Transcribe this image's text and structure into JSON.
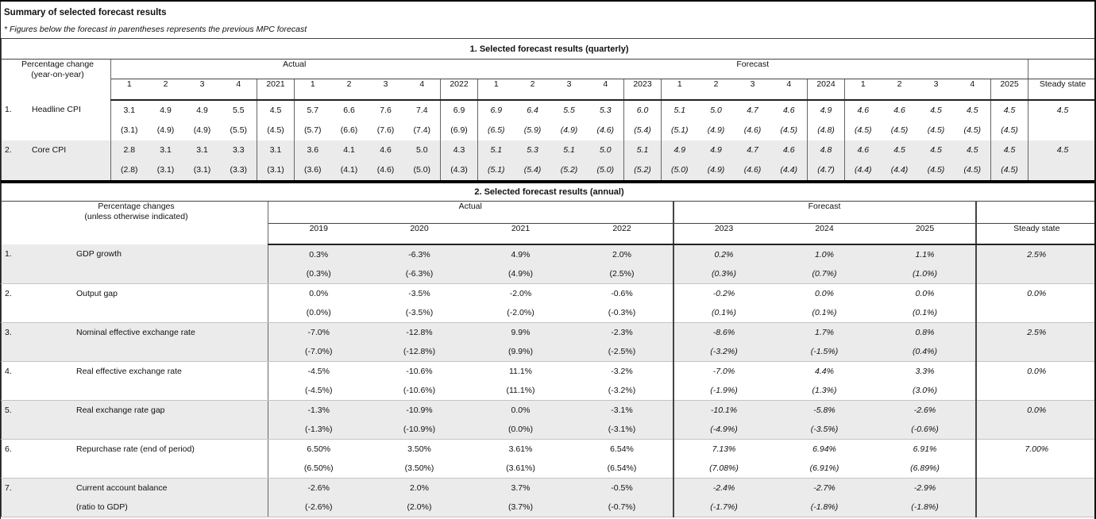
{
  "page": {
    "title": "Summary of selected forecast results",
    "footnote": "* Figures below the forecast in parentheses represents the previous MPC forecast"
  },
  "colors": {
    "row_shade": "#ebebeb",
    "grid_dark": "#000000",
    "grid_mid": "#666666",
    "text": "#111111"
  },
  "quarterly_table": {
    "title": "1. Selected forecast results (quarterly)",
    "row_header_line1": "Percentage change",
    "row_header_line2": "(year-on-year)",
    "group_actual": "Actual",
    "group_forecast": "Forecast",
    "group_steady": "Steady state",
    "columns": [
      "1",
      "2",
      "3",
      "4",
      "2021",
      "1",
      "2",
      "3",
      "4",
      "2022",
      "1",
      "2",
      "3",
      "4",
      "2023",
      "1",
      "2",
      "3",
      "4",
      "2024",
      "1",
      "2",
      "3",
      "4",
      "2025"
    ],
    "forecast_start_index": 10,
    "rows": [
      {
        "num": "1.",
        "label": "Headline CPI",
        "values": [
          "3.1",
          "4.9",
          "4.9",
          "5.5",
          "4.5",
          "5.7",
          "6.6",
          "7.6",
          "7.4",
          "6.9",
          "6.9",
          "6.4",
          "5.5",
          "5.3",
          "6.0",
          "5.1",
          "5.0",
          "4.7",
          "4.6",
          "4.9",
          "4.6",
          "4.6",
          "4.5",
          "4.5",
          "4.5"
        ],
        "previous": [
          "(3.1)",
          "(4.9)",
          "(4.9)",
          "(5.5)",
          "(4.5)",
          "(5.7)",
          "(6.6)",
          "(7.6)",
          "(7.4)",
          "(6.9)",
          "(6.5)",
          "(5.9)",
          "(4.9)",
          "(4.6)",
          "(5.4)",
          "(5.1)",
          "(4.9)",
          "(4.6)",
          "(4.5)",
          "(4.8)",
          "(4.5)",
          "(4.5)",
          "(4.5)",
          "(4.5)",
          "(4.5)"
        ],
        "steady": "4.5"
      },
      {
        "num": "2.",
        "label": "Core CPI",
        "values": [
          "2.8",
          "3.1",
          "3.1",
          "3.3",
          "3.1",
          "3.6",
          "4.1",
          "4.6",
          "5.0",
          "4.3",
          "5.1",
          "5.3",
          "5.1",
          "5.0",
          "5.1",
          "4.9",
          "4.9",
          "4.7",
          "4.6",
          "4.8",
          "4.6",
          "4.5",
          "4.5",
          "4.5",
          "4.5"
        ],
        "previous": [
          "(2.8)",
          "(3.1)",
          "(3.1)",
          "(3.3)",
          "(3.1)",
          "(3.6)",
          "(4.1)",
          "(4.6)",
          "(5.0)",
          "(4.3)",
          "(5.1)",
          "(5.4)",
          "(5.2)",
          "(5.0)",
          "(5.2)",
          "(5.0)",
          "(4.9)",
          "(4.6)",
          "(4.4)",
          "(4.7)",
          "(4.4)",
          "(4.4)",
          "(4.5)",
          "(4.5)",
          "(4.5)"
        ],
        "steady": "4.5"
      }
    ]
  },
  "annual_table": {
    "title": "2. Selected forecast results (annual)",
    "row_header_line1": "Percentage changes",
    "row_header_line2": "(unless otherwise indicated)",
    "group_actual": "Actual",
    "group_forecast": "Forecast",
    "group_steady": "Steady state",
    "columns": [
      "2019",
      "2020",
      "2021",
      "2022",
      "2023",
      "2024",
      "2025"
    ],
    "forecast_start_index": 4,
    "rows": [
      {
        "num": "1.",
        "label": "GDP growth",
        "label2": "",
        "values": [
          "0.3%",
          "-6.3%",
          "4.9%",
          "2.0%",
          "0.2%",
          "1.0%",
          "1.1%"
        ],
        "previous": [
          "(0.3%)",
          "(-6.3%)",
          "(4.9%)",
          "(2.5%)",
          "(0.3%)",
          "(0.7%)",
          "(1.0%)"
        ],
        "steady": "2.5%"
      },
      {
        "num": "2.",
        "label": "Output gap",
        "label2": "",
        "values": [
          "0.0%",
          "-3.5%",
          "-2.0%",
          "-0.6%",
          "-0.2%",
          "0.0%",
          "0.0%"
        ],
        "previous": [
          "(0.0%)",
          "(-3.5%)",
          "(-2.0%)",
          "(-0.3%)",
          "(0.1%)",
          "(0.1%)",
          "(0.1%)"
        ],
        "steady": "0.0%"
      },
      {
        "num": "3.",
        "label": "Nominal effective exchange rate",
        "label2": "",
        "values": [
          "-7.0%",
          "-12.8%",
          "9.9%",
          "-2.3%",
          "-8.6%",
          "1.7%",
          "0.8%"
        ],
        "previous": [
          "(-7.0%)",
          "(-12.8%)",
          "(9.9%)",
          "(-2.5%)",
          "(-3.2%)",
          "(-1.5%)",
          "(0.4%)"
        ],
        "steady": "2.5%"
      },
      {
        "num": "4.",
        "label": "Real effective exchange rate",
        "label2": "",
        "values": [
          "-4.5%",
          "-10.6%",
          "11.1%",
          "-3.2%",
          "-7.0%",
          "4.4%",
          "3.3%"
        ],
        "previous": [
          "(-4.5%)",
          "(-10.6%)",
          "(11.1%)",
          "(-3.2%)",
          "(-1.9%)",
          "(1.3%)",
          "(3.0%)"
        ],
        "steady": "0.0%"
      },
      {
        "num": "5.",
        "label": "Real exchange rate gap",
        "label2": "",
        "values": [
          "-1.3%",
          "-10.9%",
          "0.0%",
          "-3.1%",
          "-10.1%",
          "-5.8%",
          "-2.6%"
        ],
        "previous": [
          "(-1.3%)",
          "(-10.9%)",
          "(0.0%)",
          "(-3.1%)",
          "(-4.9%)",
          "(-3.5%)",
          "(-0.6%)"
        ],
        "steady": "0.0%"
      },
      {
        "num": "6.",
        "label": "Repurchase rate (end of period)",
        "label2": "",
        "values": [
          "6.50%",
          "3.50%",
          "3.61%",
          "6.54%",
          "7.13%",
          "6.94%",
          "6.91%"
        ],
        "previous": [
          "(6.50%)",
          "(3.50%)",
          "(3.61%)",
          "(6.54%)",
          "(7.08%)",
          "(6.91%)",
          "(6.89%)"
        ],
        "steady": "7.00%"
      },
      {
        "num": "7.",
        "label": "Current account balance",
        "label2": "(ratio to GDP)",
        "values": [
          "-2.6%",
          "2.0%",
          "3.7%",
          "-0.5%",
          "-2.4%",
          "-2.7%",
          "-2.9%"
        ],
        "previous": [
          "(-2.6%)",
          "(2.0%)",
          "(3.7%)",
          "(-0.7%)",
          "(-1.7%)",
          "(-1.8%)",
          "(-1.8%)"
        ],
        "steady": ""
      }
    ]
  }
}
